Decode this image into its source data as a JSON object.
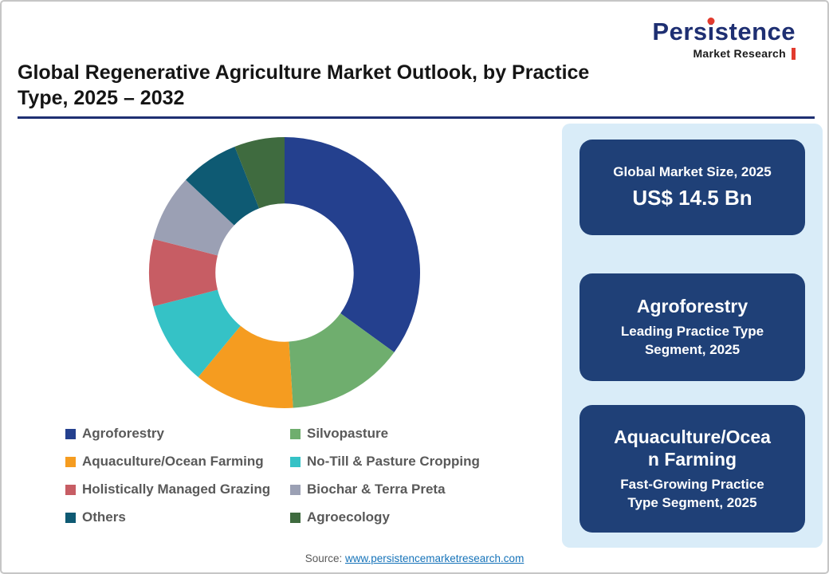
{
  "logo": {
    "brand_pre": "Pers",
    "brand_i": "i",
    "brand_post": "stence",
    "tagline": "Market Research"
  },
  "header": {
    "title": "Global Regenerative Agriculture Market Outlook, by Practice Type, 2025 – 2032"
  },
  "chart_data": {
    "type": "pie",
    "subtype": "donut",
    "start_angle_deg": -90,
    "direction": "clockwise",
    "inner_radius_ratio": 0.51,
    "values_note": "percent shares estimated from arc angles; no numeric labels shown in image",
    "segments": [
      {
        "label": "Agroforestry",
        "value": 35,
        "color": "#24408e"
      },
      {
        "label": "Silvopasture",
        "value": 14,
        "color": "#6fae6e"
      },
      {
        "label": "Aquaculture/Ocean Farming",
        "value": 12,
        "color": "#f59c20"
      },
      {
        "label": "No-Till & Pasture Cropping",
        "value": 10,
        "color": "#35c2c6"
      },
      {
        "label": "Holistically Managed Grazing",
        "value": 8,
        "color": "#c75d64"
      },
      {
        "label": "Biochar & Terra Preta",
        "value": 8,
        "color": "#9ba0b4"
      },
      {
        "label": "Others",
        "value": 7,
        "color": "#0e5a73"
      },
      {
        "label": "Agroecology",
        "value": 6,
        "color": "#3f6b3f"
      }
    ],
    "legend_position": "bottom-left"
  },
  "sidebar": {
    "cards": [
      {
        "line1": "Global Market Size, 2025",
        "line2": "US$ 14.5 Bn"
      },
      {
        "title": "Agroforestry",
        "subtitle": "Leading Practice Type Segment, 2025"
      },
      {
        "title": "Aquaculture/Ocean Farming",
        "subtitle": "Fast-Growing Practice Type Segment, 2025"
      }
    ]
  },
  "footer": {
    "source_label": "Source:",
    "source_link": "www.persistencemarketresearch.com"
  },
  "colors": {
    "brand_navy": "#1e2f72",
    "card_navy": "#1f4077",
    "panel_blue": "#d9ecf8",
    "accent_red": "#e23b2e",
    "link_blue": "#1673b9"
  }
}
